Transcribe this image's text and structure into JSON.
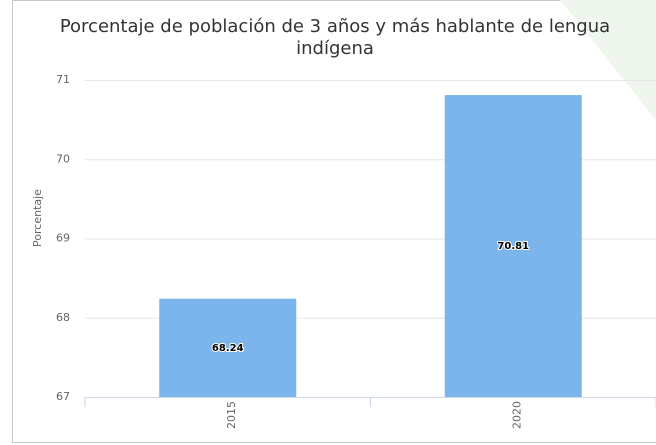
{
  "chart_data": {
    "type": "bar",
    "title": "Porcentaje de población de 3 años y más hablante de lengua indígena",
    "y_label": "Porcentaje",
    "categories": [
      "2015",
      "2020"
    ],
    "values": [
      68.24,
      70.81
    ],
    "color": "#7cb5ec",
    "ylim": [
      67,
      71
    ],
    "yticks": [
      67,
      68,
      69,
      70,
      71
    ],
    "grid": true
  }
}
